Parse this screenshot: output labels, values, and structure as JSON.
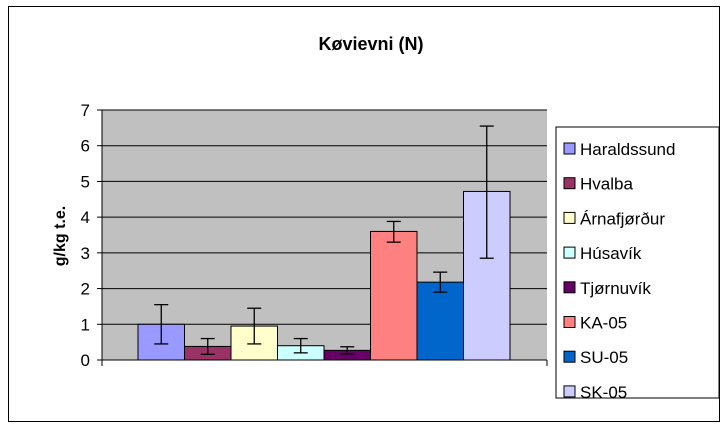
{
  "chart_data": {
    "type": "bar",
    "title": "Køvievni (N)",
    "xlabel": "",
    "ylabel": "g/kg t.e.",
    "ylim": [
      0,
      7
    ],
    "yticks": [
      0,
      1,
      2,
      3,
      4,
      5,
      6,
      7
    ],
    "grid": true,
    "legend_position": "right",
    "plot_background": "#c0c0c0",
    "error_bars": true,
    "series": [
      {
        "name": "Haraldssund",
        "value": 1.0,
        "error_low": 0.45,
        "error_high": 1.55,
        "color": "#9999ff"
      },
      {
        "name": "Hvalba",
        "value": 0.38,
        "error_low": 0.16,
        "error_high": 0.6,
        "color": "#993366"
      },
      {
        "name": "Árnafjørður",
        "value": 0.95,
        "error_low": 0.45,
        "error_high": 1.45,
        "color": "#ffffcc"
      },
      {
        "name": "Húsavík",
        "value": 0.4,
        "error_low": 0.2,
        "error_high": 0.6,
        "color": "#ccffff"
      },
      {
        "name": "Tjørnuvík",
        "value": 0.27,
        "error_low": 0.17,
        "error_high": 0.37,
        "color": "#660066"
      },
      {
        "name": "KA-05",
        "value": 3.6,
        "error_low": 3.3,
        "error_high": 3.88,
        "color": "#ff8080"
      },
      {
        "name": "SU-05",
        "value": 2.18,
        "error_low": 1.9,
        "error_high": 2.46,
        "color": "#0066cc"
      },
      {
        "name": "SK-05",
        "value": 4.72,
        "error_low": 2.85,
        "error_high": 6.55,
        "color": "#ccccff"
      }
    ]
  }
}
